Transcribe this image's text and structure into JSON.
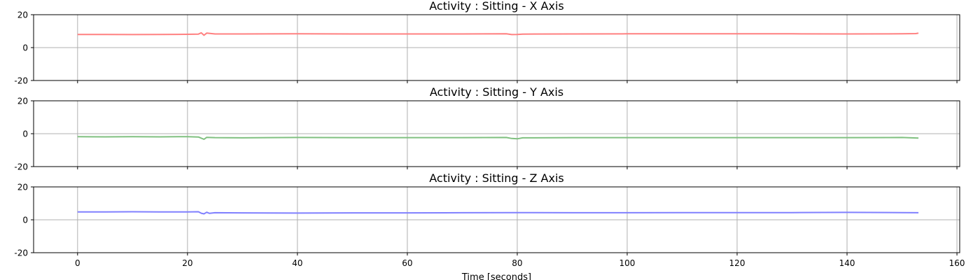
{
  "chart_data": [
    {
      "type": "line",
      "title": "Activity : Sitting - X Axis",
      "xlabel": "",
      "ylabel": "",
      "xlim": [
        -8,
        160.5
      ],
      "ylim": [
        -20,
        20
      ],
      "xticks": [
        0,
        20,
        40,
        60,
        80,
        100,
        120,
        140,
        160
      ],
      "xticklabels_visible": false,
      "yticks": [
        -20,
        0,
        20
      ],
      "grid": true,
      "color": "#ff8080",
      "series": [
        {
          "x": [
            0,
            5,
            10,
            15,
            20,
            22,
            22.5,
            23,
            23.5,
            25,
            30,
            40,
            50,
            60,
            70,
            78,
            79,
            80,
            81,
            90,
            100,
            110,
            120,
            130,
            140,
            150,
            152.5,
            153
          ],
          "y": [
            8.0,
            8.0,
            7.9,
            8.0,
            8.1,
            8.2,
            9.0,
            7.5,
            8.8,
            8.3,
            8.3,
            8.4,
            8.3,
            8.3,
            8.3,
            8.4,
            7.9,
            8.0,
            8.2,
            8.3,
            8.4,
            8.4,
            8.4,
            8.4,
            8.3,
            8.4,
            8.5,
            8.8
          ]
        }
      ]
    },
    {
      "type": "line",
      "title": "Activity : Sitting - Y Axis",
      "xlabel": "",
      "ylabel": "",
      "xlim": [
        -8,
        160.5
      ],
      "ylim": [
        -20,
        20
      ],
      "xticks": [
        0,
        20,
        40,
        60,
        80,
        100,
        120,
        140,
        160
      ],
      "xticklabels_visible": false,
      "yticks": [
        -20,
        0,
        20
      ],
      "grid": true,
      "color": "#80c080",
      "series": [
        {
          "x": [
            0,
            5,
            10,
            15,
            20,
            22,
            23,
            23.5,
            25,
            30,
            40,
            50,
            60,
            70,
            78,
            79,
            80,
            81,
            90,
            100,
            110,
            120,
            130,
            140,
            150,
            153
          ],
          "y": [
            -1.8,
            -1.9,
            -1.8,
            -1.9,
            -1.8,
            -2.0,
            -3.4,
            -2.2,
            -2.4,
            -2.5,
            -2.3,
            -2.4,
            -2.4,
            -2.4,
            -2.3,
            -2.9,
            -3.1,
            -2.5,
            -2.4,
            -2.4,
            -2.4,
            -2.4,
            -2.4,
            -2.4,
            -2.3,
            -2.7
          ]
        }
      ]
    },
    {
      "type": "line",
      "title": "Activity : Sitting - Z Axis",
      "xlabel": "Time [seconds]",
      "ylabel": "",
      "xlim": [
        -8,
        160.5
      ],
      "ylim": [
        -20,
        20
      ],
      "xticks": [
        0,
        20,
        40,
        60,
        80,
        100,
        120,
        140,
        160
      ],
      "xticklabels_visible": true,
      "yticks": [
        -20,
        0,
        20
      ],
      "grid": true,
      "color": "#8080ff",
      "series": [
        {
          "x": [
            0,
            5,
            10,
            15,
            20,
            22,
            22.5,
            23,
            23.5,
            24,
            25,
            30,
            40,
            50,
            60,
            70,
            80,
            90,
            100,
            110,
            120,
            130,
            140,
            150,
            153
          ],
          "y": [
            4.8,
            4.8,
            4.9,
            4.8,
            4.8,
            4.9,
            4.0,
            3.6,
            4.6,
            3.9,
            4.3,
            4.2,
            4.1,
            4.2,
            4.2,
            4.3,
            4.4,
            4.3,
            4.3,
            4.4,
            4.4,
            4.4,
            4.5,
            4.4,
            4.3
          ]
        }
      ]
    }
  ]
}
